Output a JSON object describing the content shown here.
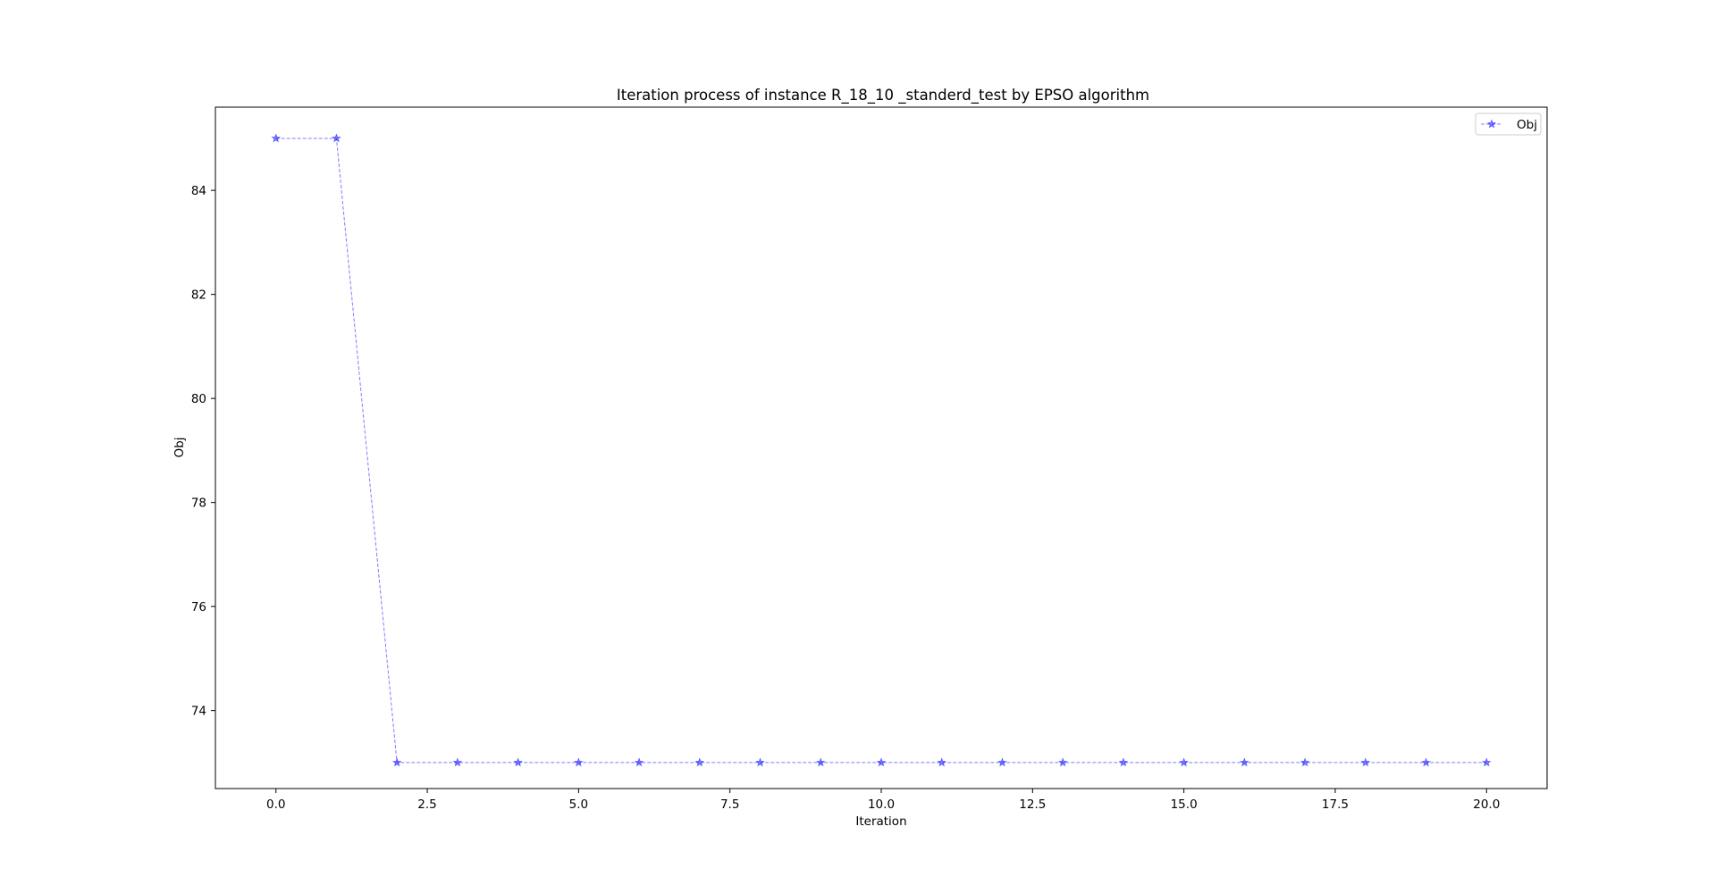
{
  "chart_data": {
    "type": "line",
    "title": "Iteration process of instance R_18_10 _standerd_test by EPSO algorithm",
    "xlabel": "Iteration",
    "ylabel": "Obj",
    "xlim": [
      -1.0,
      21.0
    ],
    "ylim": [
      72.5,
      85.6
    ],
    "xticks": [
      0.0,
      2.5,
      5.0,
      7.5,
      10.0,
      12.5,
      15.0,
      17.5,
      20.0
    ],
    "xtick_labels": [
      "0.0",
      "2.5",
      "5.0",
      "7.5",
      "10.0",
      "12.5",
      "15.0",
      "17.5",
      "20.0"
    ],
    "yticks": [
      74,
      76,
      78,
      80,
      82,
      84
    ],
    "ytick_labels": [
      "74",
      "76",
      "78",
      "80",
      "82",
      "84"
    ],
    "grid": false,
    "legend_position": "top-right",
    "series": [
      {
        "name": "Obj",
        "color": "#0000ff",
        "line_style": "dashed",
        "marker": "star",
        "x": [
          0,
          1,
          2,
          3,
          4,
          5,
          6,
          7,
          8,
          9,
          10,
          11,
          12,
          13,
          14,
          15,
          16,
          17,
          18,
          19,
          20
        ],
        "values": [
          85,
          85,
          73,
          73,
          73,
          73,
          73,
          73,
          73,
          73,
          73,
          73,
          73,
          73,
          73,
          73,
          73,
          73,
          73,
          73,
          73
        ]
      }
    ]
  }
}
